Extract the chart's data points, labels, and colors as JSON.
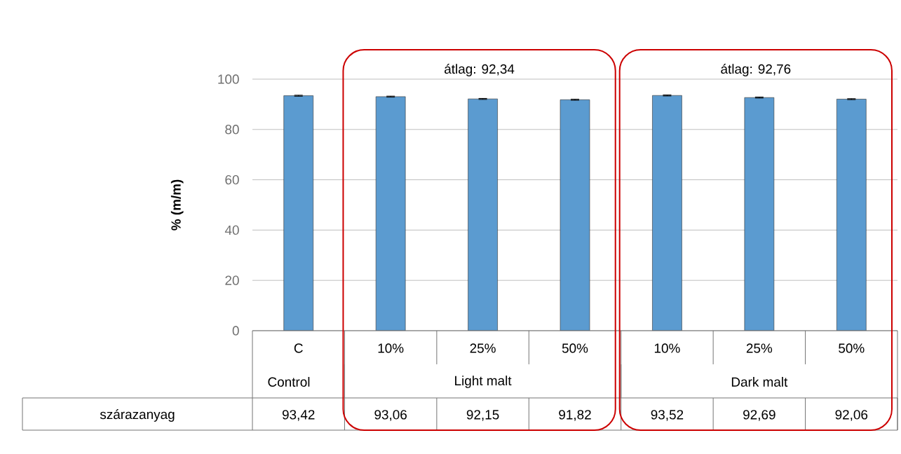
{
  "chart_data": {
    "type": "bar",
    "ylabel": "% (m/m)",
    "categories": [
      "C",
      "10%",
      "25%",
      "50%",
      "10%",
      "25%",
      "50%"
    ],
    "series": [
      {
        "name": "szárazanyag",
        "color": "#5b9bd0",
        "values": [
          93.42,
          93.06,
          92.15,
          91.82,
          93.52,
          92.69,
          92.06
        ],
        "errors": [
          0.2,
          0.2,
          0.2,
          0.2,
          0.2,
          0.2,
          0.2
        ],
        "value_labels": [
          "93,42",
          "93,06",
          "92,15",
          "91,82",
          "93,52",
          "92,69",
          "92,06"
        ]
      }
    ],
    "ylim": [
      0,
      100
    ],
    "yticks": [
      0,
      20,
      40,
      60,
      80,
      100
    ],
    "grid": "y",
    "annotations": [
      "Control",
      "Light malt",
      "Dark malt",
      "átlag: 92,34",
      "átlag: 92,76"
    ]
  }
}
